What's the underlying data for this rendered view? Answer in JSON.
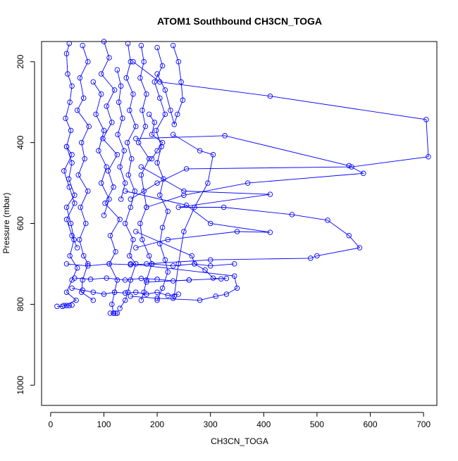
{
  "chart_data": {
    "type": "scatter",
    "title": "ATOM1 Southbound CH3CN_TOGA",
    "xlabel": "CH3CN_TOGA",
    "ylabel": "Pressure (mbar)",
    "xlim": [
      -17,
      725
    ],
    "ylim": [
      1050,
      150
    ],
    "y_reversed": true,
    "x_ticks": [
      0,
      100,
      200,
      300,
      400,
      500,
      600,
      700
    ],
    "y_ticks": [
      200,
      400,
      600,
      800,
      1000
    ],
    "grid": false,
    "legend": "none",
    "colors": {
      "series": "#0000ff",
      "axis": "#000000"
    },
    "series": [
      {
        "values": [
          [
            35,
            155
          ],
          [
            30,
            180
          ],
          [
            32,
            230
          ],
          [
            40,
            260
          ],
          [
            36,
            300
          ],
          [
            28,
            340
          ],
          [
            38,
            370
          ],
          [
            30,
            410
          ],
          [
            40,
            450
          ],
          [
            34,
            490
          ],
          [
            45,
            530
          ],
          [
            30,
            560
          ],
          [
            38,
            600
          ],
          [
            44,
            640
          ],
          [
            36,
            680
          ],
          [
            50,
            710
          ],
          [
            40,
            740
          ],
          [
            30,
            770
          ],
          [
            48,
            790
          ],
          [
            22,
            805
          ],
          [
            12,
            805
          ]
        ]
      },
      {
        "values": [
          [
            60,
            160
          ],
          [
            70,
            200
          ],
          [
            55,
            240
          ],
          [
            62,
            290
          ],
          [
            50,
            320
          ],
          [
            72,
            360
          ],
          [
            58,
            400
          ],
          [
            64,
            440
          ],
          [
            52,
            480
          ],
          [
            70,
            520
          ],
          [
            56,
            560
          ],
          [
            66,
            600
          ],
          [
            54,
            640
          ],
          [
            62,
            680
          ],
          [
            70,
            700
          ],
          [
            60,
            740
          ],
          [
            58,
            770
          ],
          [
            80,
            790
          ]
        ]
      },
      {
        "values": [
          [
            100,
            150
          ],
          [
            110,
            190
          ],
          [
            95,
            230
          ],
          [
            120,
            270
          ],
          [
            105,
            310
          ],
          [
            115,
            350
          ],
          [
            98,
            390
          ],
          [
            125,
            430
          ],
          [
            108,
            470
          ],
          [
            118,
            510
          ],
          [
            102,
            550
          ],
          [
            130,
            590
          ],
          [
            112,
            630
          ],
          [
            122,
            670
          ],
          [
            110,
            700
          ],
          [
            125,
            740
          ],
          [
            120,
            770
          ],
          [
            115,
            800
          ],
          [
            118,
            822
          ]
        ]
      },
      {
        "values": [
          [
            145,
            155
          ],
          [
            150,
            200
          ],
          [
            142,
            240
          ],
          [
            155,
            280
          ],
          [
            148,
            320
          ],
          [
            160,
            360
          ],
          [
            144,
            400
          ],
          [
            152,
            440
          ],
          [
            146,
            480
          ],
          [
            158,
            520
          ],
          [
            150,
            560
          ],
          [
            140,
            600
          ],
          [
            155,
            640
          ],
          [
            148,
            680
          ],
          [
            160,
            700
          ],
          [
            150,
            740
          ],
          [
            145,
            770
          ],
          [
            140,
            790
          ],
          [
            130,
            810
          ]
        ]
      },
      {
        "values": [
          [
            170,
            160
          ],
          [
            175,
            200
          ],
          [
            168,
            240
          ],
          [
            180,
            280
          ],
          [
            172,
            320
          ],
          [
            178,
            360
          ],
          [
            165,
            400
          ],
          [
            185,
            440
          ],
          [
            170,
            480
          ],
          [
            175,
            520
          ],
          [
            180,
            560
          ],
          [
            168,
            600
          ],
          [
            172,
            640
          ],
          [
            185,
            680
          ],
          [
            190,
            700
          ],
          [
            180,
            740
          ],
          [
            175,
            770
          ],
          [
            170,
            790
          ]
        ]
      },
      {
        "values": [
          [
            200,
            165
          ],
          [
            210,
            210
          ],
          [
            195,
            250
          ],
          [
            205,
            290
          ],
          [
            215,
            330
          ],
          [
            198,
            370
          ],
          [
            208,
            410
          ],
          [
            200,
            450
          ],
          [
            212,
            490
          ],
          [
            205,
            530
          ],
          [
            220,
            570
          ],
          [
            210,
            610
          ],
          [
            205,
            650
          ],
          [
            215,
            690
          ],
          [
            220,
            720
          ],
          [
            210,
            760
          ],
          [
            200,
            790
          ]
        ]
      },
      {
        "values": [
          [
            230,
            160
          ],
          [
            240,
            200
          ],
          [
            245,
            250
          ],
          [
            248,
            295
          ],
          [
            238,
            330
          ],
          [
            232,
            355
          ],
          [
            225,
            320
          ],
          [
            215,
            270
          ],
          [
            200,
            230
          ]
        ]
      },
      {
        "values": [
          [
            155,
            200
          ],
          [
            205,
            250
          ],
          [
            412,
            285
          ],
          [
            705,
            343
          ],
          [
            709,
            435
          ],
          [
            565,
            460
          ],
          [
            255,
            465
          ],
          [
            200,
            500
          ],
          [
            150,
            540
          ]
        ]
      },
      {
        "values": [
          [
            160,
            390
          ],
          [
            327,
            383
          ],
          [
            560,
            457
          ],
          [
            587,
            476
          ],
          [
            370,
            500
          ],
          [
            250,
            530
          ],
          [
            180,
            560
          ]
        ]
      },
      {
        "values": [
          [
            170,
            460
          ],
          [
            250,
            520
          ],
          [
            412,
            528
          ],
          [
            240,
            560
          ],
          [
            325,
            560
          ],
          [
            453,
            578
          ],
          [
            520,
            592
          ],
          [
            560,
            630
          ],
          [
            580,
            660
          ],
          [
            500,
            680
          ],
          [
            488,
            686
          ],
          [
            300,
            690
          ],
          [
            180,
            700
          ]
        ]
      },
      {
        "values": [
          [
            140,
            520
          ],
          [
            255,
            555
          ],
          [
            300,
            600
          ],
          [
            412,
            622
          ],
          [
            350,
            620
          ],
          [
            220,
            640
          ],
          [
            160,
            660
          ]
        ]
      },
      {
        "values": [
          [
            150,
            700
          ],
          [
            345,
            730
          ],
          [
            350,
            760
          ],
          [
            330,
            775
          ],
          [
            310,
            780
          ],
          [
            280,
            790
          ],
          [
            200,
            785
          ],
          [
            150,
            780
          ]
        ]
      },
      {
        "values": [
          [
            160,
            620
          ],
          [
            265,
            680
          ],
          [
            270,
            700
          ],
          [
            290,
            715
          ],
          [
            305,
            735
          ],
          [
            320,
            737
          ],
          [
            330,
            736
          ],
          [
            260,
            740
          ],
          [
            180,
            745
          ]
        ]
      },
      {
        "values": [
          [
            230,
            380
          ],
          [
            280,
            420
          ],
          [
            305,
            430
          ],
          [
            295,
            500
          ],
          [
            270,
            560
          ],
          [
            250,
            620
          ],
          [
            240,
            700
          ],
          [
            232,
            780
          ],
          [
            230,
            785
          ]
        ]
      },
      {
        "values": [
          [
            25,
            803
          ],
          [
            30,
            803
          ],
          [
            35,
            803
          ],
          [
            40,
            802
          ]
        ]
      },
      {
        "values": [
          [
            40,
            760
          ],
          [
            60,
            765
          ],
          [
            80,
            770
          ],
          [
            100,
            775
          ],
          [
            120,
            770
          ],
          [
            140,
            772
          ],
          [
            160,
            770
          ],
          [
            180,
            775
          ],
          [
            200,
            770
          ],
          [
            220,
            778
          ],
          [
            240,
            775
          ]
        ]
      },
      {
        "values": [
          [
            45,
            735
          ],
          [
            75,
            738
          ],
          [
            105,
            735
          ],
          [
            140,
            740
          ],
          [
            170,
            736
          ],
          [
            200,
            738
          ],
          [
            230,
            742
          ],
          [
            260,
            740
          ]
        ]
      },
      {
        "values": [
          [
            30,
            700
          ],
          [
            70,
            705
          ],
          [
            110,
            700
          ],
          [
            150,
            702
          ],
          [
            190,
            700
          ],
          [
            230,
            705
          ],
          [
            270,
            700
          ],
          [
            300,
            705
          ],
          [
            345,
            700
          ]
        ]
      },
      {
        "values": [
          [
            30,
            410
          ],
          [
            40,
            430
          ],
          [
            25,
            470
          ],
          [
            35,
            510
          ],
          [
            45,
            550
          ],
          [
            30,
            590
          ],
          [
            40,
            630
          ],
          [
            50,
            660
          ]
        ]
      },
      {
        "values": [
          [
            80,
            250
          ],
          [
            95,
            280
          ],
          [
            85,
            330
          ],
          [
            100,
            370
          ],
          [
            90,
            420
          ],
          [
            105,
            460
          ],
          [
            95,
            500
          ],
          [
            110,
            540
          ],
          [
            100,
            580
          ]
        ]
      },
      {
        "values": [
          [
            125,
            220
          ],
          [
            132,
            260
          ],
          [
            128,
            300
          ],
          [
            135,
            340
          ],
          [
            126,
            380
          ],
          [
            138,
            420
          ],
          [
            130,
            460
          ],
          [
            140,
            500
          ],
          [
            132,
            540
          ]
        ]
      },
      {
        "values": [
          [
            185,
            330
          ],
          [
            195,
            350
          ],
          [
            190,
            380
          ],
          [
            210,
            400
          ],
          [
            200,
            420
          ],
          [
            190,
            440
          ]
        ]
      },
      {
        "values": [
          [
            112,
            822
          ],
          [
            118,
            822
          ],
          [
            122,
            822
          ],
          [
            125,
            822
          ]
        ]
      }
    ]
  },
  "page": {
    "title": "ATOM1 Southbound CH3CN_TOGA",
    "xlabel": "CH3CN_TOGA",
    "ylabel": "Pressure (mbar)"
  }
}
